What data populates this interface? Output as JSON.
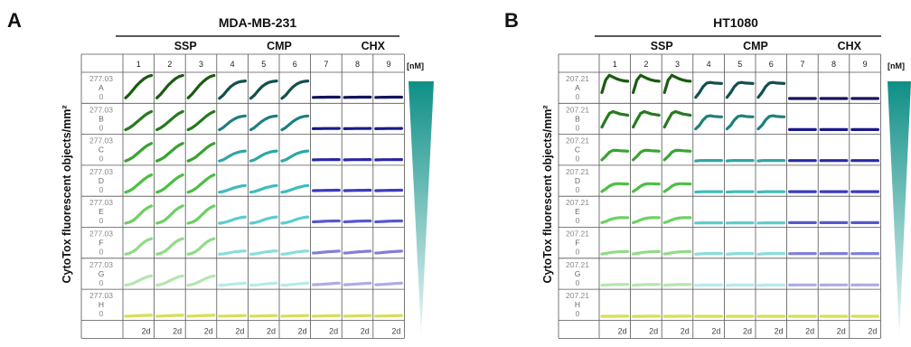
{
  "chart_data": [
    {
      "type": "line",
      "panel": "A",
      "title": "MDA-MB-231",
      "ylabel": "CytoTox fluorescent objects/mm²",
      "unit_label": "[nM]",
      "groups": [
        {
          "name": "SSP",
          "columns": [
            1,
            2,
            3
          ]
        },
        {
          "name": "CMP",
          "columns": [
            4,
            5,
            6
          ]
        },
        {
          "name": "CHX",
          "columns": [
            7,
            8,
            9
          ]
        }
      ],
      "columns": [
        "1",
        "2",
        "3",
        "4",
        "5",
        "6",
        "7",
        "8",
        "9"
      ],
      "rows": [
        "A",
        "B",
        "C",
        "D",
        "E",
        "F",
        "G",
        "H"
      ],
      "ymax_label": "277.03",
      "ymin_label": "0",
      "ylim": [
        0,
        277.03
      ],
      "x_tick_label": "2d",
      "row_colors": {
        "SSP": [
          "#1a5c10",
          "#267a1e",
          "#3aa332",
          "#4cbf44",
          "#6dd063",
          "#91db88",
          "#b4e6ad",
          "#d8de55"
        ],
        "CMP": [
          "#134f4f",
          "#1f7f7f",
          "#2fa6a6",
          "#3fbcbc",
          "#5ccdcd",
          "#8bdcdc",
          "#b8e9e9",
          "#d8de55"
        ],
        "CHX": [
          "#14145e",
          "#1a1a8a",
          "#2a2aa6",
          "#3b3bbf",
          "#5858cd",
          "#8080d8",
          "#acace6",
          "#d8de55"
        ]
      },
      "series_values": {
        "SSP": [
          [
            20,
            60,
            110,
            160,
            200,
            235,
            260,
            272
          ],
          [
            10,
            30,
            60,
            95,
            130,
            165,
            195,
            215
          ],
          [
            8,
            25,
            50,
            85,
            120,
            155,
            185,
            205
          ],
          [
            5,
            20,
            45,
            80,
            115,
            150,
            180,
            200
          ],
          [
            5,
            15,
            35,
            70,
            110,
            150,
            180,
            200
          ],
          [
            5,
            15,
            35,
            65,
            105,
            140,
            165,
            180
          ],
          [
            5,
            12,
            25,
            45,
            65,
            85,
            100,
            110
          ],
          [
            5,
            6,
            8,
            10,
            12,
            13,
            14,
            15
          ]
        ],
        "CMP": [
          [
            15,
            50,
            100,
            145,
            175,
            195,
            205,
            210
          ],
          [
            10,
            35,
            70,
            105,
            130,
            150,
            160,
            165
          ],
          [
            8,
            20,
            45,
            70,
            90,
            105,
            115,
            120
          ],
          [
            5,
            12,
            25,
            40,
            55,
            65,
            75,
            80
          ],
          [
            5,
            10,
            20,
            35,
            50,
            60,
            70,
            75
          ],
          [
            5,
            8,
            15,
            22,
            30,
            35,
            40,
            42
          ],
          [
            5,
            6,
            10,
            14,
            18,
            22,
            25,
            28
          ],
          [
            5,
            6,
            7,
            8,
            9,
            10,
            11,
            12
          ]
        ],
        "CHX": [
          [
            25,
            26,
            27,
            27,
            28,
            28,
            28,
            28
          ],
          [
            22,
            23,
            23,
            24,
            24,
            24,
            24,
            25
          ],
          [
            20,
            21,
            22,
            22,
            22,
            23,
            23,
            23
          ],
          [
            22,
            23,
            24,
            25,
            26,
            26,
            27,
            27
          ],
          [
            20,
            22,
            24,
            26,
            28,
            29,
            30,
            30
          ],
          [
            18,
            20,
            24,
            28,
            32,
            35,
            38,
            40
          ],
          [
            10,
            12,
            14,
            17,
            20,
            23,
            26,
            28
          ],
          [
            5,
            6,
            7,
            8,
            9,
            10,
            11,
            12
          ]
        ]
      }
    },
    {
      "type": "line",
      "panel": "B",
      "title": "HT1080",
      "ylabel": "CytoTox fluorescent objects/mm²",
      "unit_label": "[nM]",
      "groups": [
        {
          "name": "SSP",
          "columns": [
            1,
            2,
            3
          ]
        },
        {
          "name": "CMP",
          "columns": [
            4,
            5,
            6
          ]
        },
        {
          "name": "CHX",
          "columns": [
            7,
            8,
            9
          ]
        }
      ],
      "columns": [
        "1",
        "2",
        "3",
        "4",
        "5",
        "6",
        "7",
        "8",
        "9"
      ],
      "rows": [
        "A",
        "B",
        "C",
        "D",
        "E",
        "F",
        "G",
        "H"
      ],
      "ymax_label": "207.21",
      "ymin_label": "0",
      "ylim": [
        0,
        207.21
      ],
      "x_tick_label": "2d",
      "row_colors": {
        "SSP": [
          "#1a5c10",
          "#267a1e",
          "#3aa332",
          "#4cbf44",
          "#6dd063",
          "#91db88",
          "#b4e6ad",
          "#d8de55"
        ],
        "CMP": [
          "#134f4f",
          "#1f7f7f",
          "#2fa6a6",
          "#3fbcbc",
          "#5ccdcd",
          "#8bdcdc",
          "#b8e9e9",
          "#d8de55"
        ],
        "CHX": [
          "#14145e",
          "#1a1a8a",
          "#2a2aa6",
          "#3b3bbf",
          "#5858cd",
          "#8080d8",
          "#acace6",
          "#d8de55"
        ]
      },
      "series_values": {
        "SSP": [
          [
            60,
            165,
            205,
            190,
            175,
            165,
            158,
            155
          ],
          [
            30,
            90,
            145,
            160,
            150,
            140,
            135,
            130
          ],
          [
            15,
            45,
            80,
            95,
            95,
            92,
            90,
            88
          ],
          [
            10,
            30,
            55,
            70,
            75,
            75,
            74,
            73
          ],
          [
            8,
            18,
            32,
            42,
            48,
            50,
            50,
            50
          ],
          [
            5,
            10,
            16,
            20,
            23,
            25,
            26,
            26
          ],
          [
            3,
            5,
            7,
            8,
            9,
            10,
            10,
            10
          ],
          [
            2,
            3,
            3,
            3,
            4,
            4,
            4,
            4
          ]
        ],
        "CMP": [
          [
            20,
            60,
            110,
            140,
            145,
            140,
            138,
            136
          ],
          [
            15,
            45,
            90,
            120,
            125,
            120,
            118,
            116
          ],
          [
            6,
            9,
            10,
            10,
            10,
            10,
            10,
            10
          ],
          [
            5,
            7,
            8,
            8,
            8,
            8,
            8,
            8
          ],
          [
            5,
            6,
            7,
            7,
            7,
            7,
            7,
            7
          ],
          [
            4,
            6,
            8,
            9,
            10,
            10,
            10,
            10
          ],
          [
            3,
            4,
            5,
            5,
            5,
            5,
            5,
            5
          ],
          [
            2,
            3,
            3,
            3,
            3,
            3,
            3,
            3
          ]
        ],
        "CHX": [
          [
            10,
            10,
            10,
            10,
            10,
            10,
            10,
            10
          ],
          [
            9,
            9,
            9,
            9,
            9,
            9,
            9,
            9
          ],
          [
            9,
            9,
            9,
            9,
            9,
            9,
            9,
            9
          ],
          [
            8,
            8,
            8,
            8,
            8,
            8,
            8,
            8
          ],
          [
            8,
            8,
            8,
            8,
            8,
            8,
            8,
            8
          ],
          [
            8,
            8,
            9,
            9,
            9,
            9,
            9,
            9
          ],
          [
            5,
            5,
            6,
            6,
            6,
            6,
            6,
            6
          ],
          [
            3,
            3,
            3,
            3,
            3,
            3,
            3,
            3
          ]
        ]
      }
    }
  ]
}
